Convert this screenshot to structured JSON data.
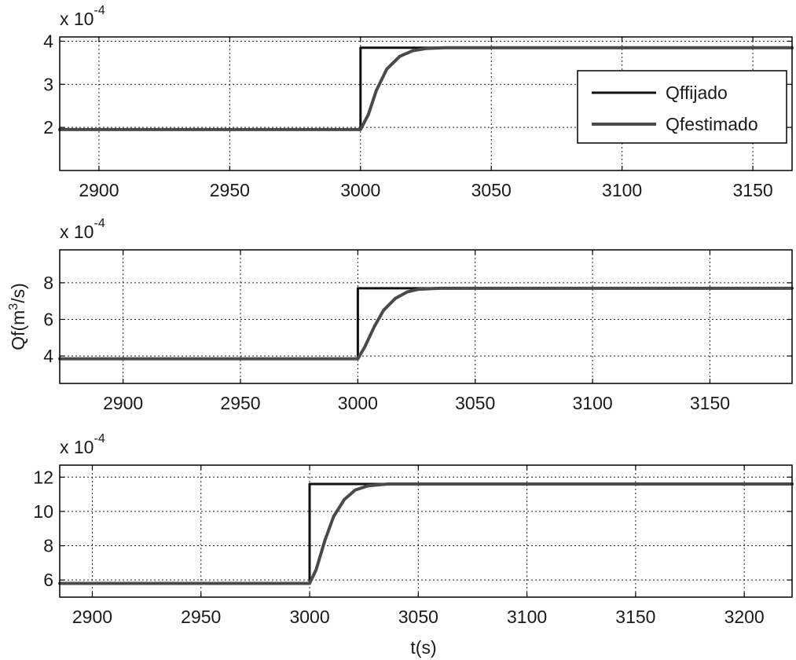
{
  "chart_data": [
    {
      "type": "line",
      "exponent_label": "x 10",
      "exponent_power": "-4",
      "xlim": [
        2885,
        3165
      ],
      "ylim": [
        1.0,
        4.1
      ],
      "x_ticks": [
        "2900",
        "2950",
        "3000",
        "3050",
        "3100",
        "3150"
      ],
      "y_ticks": [
        "2",
        "3",
        "4"
      ],
      "grid": true,
      "legend": {
        "position": "top-right",
        "entries": [
          "Qffijado",
          "Qfestimado"
        ]
      },
      "series": [
        {
          "name": "Qffijado",
          "color": "#111111",
          "x": [
            2885,
            3000,
            3000,
            3165
          ],
          "y": [
            1.95,
            1.95,
            3.85,
            3.85
          ]
        },
        {
          "name": "Qfestimado",
          "color": "#4a4a4a",
          "x": [
            2885,
            3000,
            3003,
            3006,
            3010,
            3015,
            3020,
            3025,
            3032,
            3165
          ],
          "y": [
            1.95,
            1.95,
            2.3,
            2.85,
            3.35,
            3.65,
            3.78,
            3.83,
            3.85,
            3.85
          ]
        }
      ]
    },
    {
      "type": "line",
      "exponent_label": "x 10",
      "exponent_power": "-4",
      "ylabel": "Qf(m",
      "ylabel_sup": "3",
      "ylabel_tail": "/s)",
      "xlim": [
        2873,
        3185
      ],
      "ylim": [
        2.5,
        9.8
      ],
      "x_ticks": [
        "2900",
        "2950",
        "3000",
        "3050",
        "3100",
        "3150"
      ],
      "y_ticks": [
        "4",
        "6",
        "8"
      ],
      "grid": true,
      "series": [
        {
          "name": "Qffijado",
          "color": "#111111",
          "x": [
            2873,
            3000,
            3000,
            3185
          ],
          "y": [
            3.85,
            3.85,
            7.7,
            7.7
          ]
        },
        {
          "name": "Qfestimado",
          "color": "#4a4a4a",
          "x": [
            2873,
            3000,
            3003,
            3007,
            3011,
            3016,
            3021,
            3026,
            3035,
            3185
          ],
          "y": [
            3.85,
            3.85,
            4.5,
            5.6,
            6.5,
            7.15,
            7.5,
            7.65,
            7.7,
            7.7
          ]
        }
      ]
    },
    {
      "type": "line",
      "exponent_label": "x 10",
      "exponent_power": "-4",
      "xlabel": "t(s)",
      "xlim": [
        2885,
        3222
      ],
      "ylim": [
        5.0,
        12.7
      ],
      "x_ticks": [
        "2900",
        "2950",
        "3000",
        "3050",
        "3100",
        "3150",
        "3200"
      ],
      "y_ticks": [
        "6",
        "8",
        "10",
        "12"
      ],
      "grid": true,
      "series": [
        {
          "name": "Qffijado",
          "color": "#111111",
          "x": [
            2885,
            3000,
            3000,
            3222
          ],
          "y": [
            5.8,
            5.8,
            11.6,
            11.6
          ]
        },
        {
          "name": "Qfestimado",
          "color": "#4a4a4a",
          "x": [
            2885,
            3000,
            3003,
            3007,
            3011,
            3016,
            3021,
            3027,
            3036,
            3222
          ],
          "y": [
            5.8,
            5.8,
            6.6,
            8.3,
            9.7,
            10.7,
            11.25,
            11.5,
            11.6,
            11.6
          ]
        }
      ]
    }
  ]
}
